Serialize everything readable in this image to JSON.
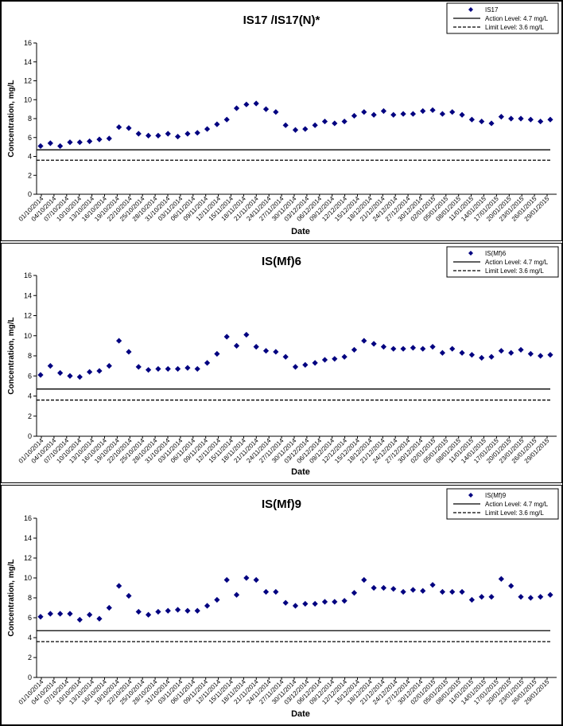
{
  "chart_data": [
    {
      "type": "scatter",
      "title": "IS17 /IS17(N)*",
      "xlabel": "Date",
      "ylabel": "Concentration, mg/L",
      "ylim": [
        0,
        16
      ],
      "yticks": [
        0,
        2,
        4,
        6,
        8,
        10,
        12,
        14,
        16
      ],
      "grid": false,
      "legend_position": "top-right",
      "x_tick_labels": [
        "01/10/2014",
        "04/10/2014",
        "07/10/2014",
        "10/10/2014",
        "13/10/2014",
        "16/10/2014",
        "19/10/2014",
        "22/10/2014",
        "25/10/2014",
        "28/10/2014",
        "31/10/2014",
        "03/11/2014",
        "06/11/2014",
        "09/11/2014",
        "12/11/2014",
        "15/11/2014",
        "18/11/2014",
        "21/11/2014",
        "24/11/2014",
        "27/11/2014",
        "30/11/2014",
        "03/12/2014",
        "06/12/2014",
        "09/12/2014",
        "12/12/2014",
        "15/12/2014",
        "18/12/2014",
        "21/12/2014",
        "24/12/2014",
        "27/12/2014",
        "30/12/2014",
        "02/01/2015",
        "05/01/2015",
        "08/01/2015",
        "11/01/2015",
        "14/01/2015",
        "17/01/2015",
        "20/01/2015",
        "23/01/2015",
        "26/01/2015",
        "29/01/2015"
      ],
      "series": [
        {
          "name": "IS17",
          "marker": "diamond",
          "color": "#000080",
          "values": [
            5.1,
            5.4,
            5.1,
            5.5,
            5.5,
            5.6,
            5.8,
            5.9,
            7.1,
            7.0,
            6.4,
            6.2,
            6.2,
            6.4,
            6.1,
            6.4,
            6.5,
            6.9,
            7.4,
            7.9,
            9.1,
            9.5,
            9.6,
            9.0,
            8.7,
            7.3,
            6.8,
            6.9,
            7.3,
            7.7,
            7.5,
            7.7,
            8.3,
            8.7,
            8.4,
            8.8,
            8.4,
            8.5,
            8.5,
            8.8,
            8.9,
            8.5,
            8.7,
            8.4,
            7.9,
            7.7,
            7.5,
            8.2,
            8.0,
            8.0,
            7.9,
            7.7,
            7.9
          ]
        },
        {
          "name": "Action Level: 4.7 mg/L",
          "style": "solid",
          "color": "#000000",
          "value": 4.7
        },
        {
          "name": "Limit Level: 3.6 mg/L",
          "style": "dashed",
          "color": "#000000",
          "value": 3.6
        }
      ]
    },
    {
      "type": "scatter",
      "title": "IS(Mf)6",
      "xlabel": "Date",
      "ylabel": "Concentration, mg/L",
      "ylim": [
        0,
        16
      ],
      "yticks": [
        0,
        2,
        4,
        6,
        8,
        10,
        12,
        14,
        16
      ],
      "grid": false,
      "legend_position": "top-right",
      "x_tick_labels": [
        "01/10/2014",
        "04/10/2014",
        "07/10/2014",
        "10/10/2014",
        "13/10/2014",
        "16/10/2014",
        "19/10/2014",
        "22/10/2014",
        "25/10/2014",
        "28/10/2014",
        "31/10/2014",
        "03/11/2014",
        "06/11/2014",
        "09/11/2014",
        "12/11/2014",
        "15/11/2014",
        "18/11/2014",
        "21/11/2014",
        "24/11/2014",
        "27/11/2014",
        "30/11/2014",
        "03/12/2014",
        "06/12/2014",
        "09/12/2014",
        "12/12/2014",
        "15/12/2014",
        "18/12/2014",
        "21/12/2014",
        "24/12/2014",
        "27/12/2014",
        "30/12/2014",
        "02/01/2015",
        "05/01/2015",
        "08/01/2015",
        "11/01/2015",
        "14/01/2015",
        "17/01/2015",
        "20/01/2015",
        "23/01/2015",
        "26/01/2015",
        "29/01/2015"
      ],
      "series": [
        {
          "name": "IS(Mf)6",
          "marker": "diamond",
          "color": "#000080",
          "values": [
            6.1,
            7.0,
            6.3,
            6.0,
            5.9,
            6.4,
            6.5,
            7.0,
            9.5,
            8.4,
            6.9,
            6.6,
            6.7,
            6.7,
            6.7,
            6.8,
            6.7,
            7.3,
            8.2,
            9.9,
            9.0,
            10.1,
            8.9,
            8.5,
            8.4,
            7.9,
            6.9,
            7.1,
            7.3,
            7.6,
            7.7,
            7.9,
            8.6,
            9.5,
            9.2,
            8.9,
            8.7,
            8.7,
            8.8,
            8.7,
            8.9,
            8.3,
            8.7,
            8.3,
            8.1,
            7.8,
            7.9,
            8.5,
            8.3,
            8.6,
            8.2,
            8.0,
            8.1
          ]
        },
        {
          "name": "Action Level: 4.7 mg/L",
          "style": "solid",
          "color": "#000000",
          "value": 4.7
        },
        {
          "name": "Limit Level: 3.6 mg/L",
          "style": "dashed",
          "color": "#000000",
          "value": 3.6
        }
      ]
    },
    {
      "type": "scatter",
      "title": "IS(Mf)9",
      "xlabel": "Date",
      "ylabel": "Concentration, mg/L",
      "ylim": [
        0,
        16
      ],
      "yticks": [
        0,
        2,
        4,
        6,
        8,
        10,
        12,
        14,
        16
      ],
      "grid": false,
      "legend_position": "top-right",
      "x_tick_labels": [
        "01/10/2014",
        "04/10/2014",
        "07/10/2014",
        "10/10/2014",
        "13/10/2014",
        "16/10/2014",
        "19/10/2014",
        "22/10/2014",
        "25/10/2014",
        "28/10/2014",
        "31/10/2014",
        "03/11/2014",
        "06/11/2014",
        "09/11/2014",
        "12/11/2014",
        "15/11/2014",
        "18/11/2014",
        "21/11/2014",
        "24/11/2014",
        "27/11/2014",
        "30/11/2014",
        "03/12/2014",
        "06/12/2014",
        "09/12/2014",
        "12/12/2014",
        "15/12/2014",
        "18/12/2014",
        "21/12/2014",
        "24/12/2014",
        "27/12/2014",
        "30/12/2014",
        "02/01/2015",
        "05/01/2015",
        "08/01/2015",
        "11/01/2015",
        "14/01/2015",
        "17/01/2015",
        "20/01/2015",
        "23/01/2015",
        "26/01/2015",
        "29/01/2015"
      ],
      "series": [
        {
          "name": "IS(Mf)9",
          "marker": "diamond",
          "color": "#000080",
          "values": [
            6.1,
            6.4,
            6.4,
            6.4,
            5.8,
            6.3,
            5.9,
            7.0,
            9.2,
            8.2,
            6.6,
            6.3,
            6.6,
            6.7,
            6.8,
            6.7,
            6.7,
            7.2,
            7.8,
            9.8,
            8.3,
            10.0,
            9.8,
            8.6,
            8.6,
            7.5,
            7.2,
            7.4,
            7.4,
            7.6,
            7.6,
            7.7,
            8.5,
            9.8,
            9.0,
            9.0,
            8.9,
            8.6,
            8.8,
            8.7,
            9.3,
            8.6,
            8.6,
            8.6,
            7.8,
            8.1,
            8.1,
            9.9,
            9.2,
            8.1,
            8.0,
            8.1,
            8.3
          ]
        },
        {
          "name": "Action Level: 4.7 mg/L",
          "style": "solid",
          "color": "#000000",
          "value": 4.7
        },
        {
          "name": "Limit Level: 3.6 mg/L",
          "style": "dashed",
          "color": "#000000",
          "value": 3.6
        }
      ]
    }
  ]
}
